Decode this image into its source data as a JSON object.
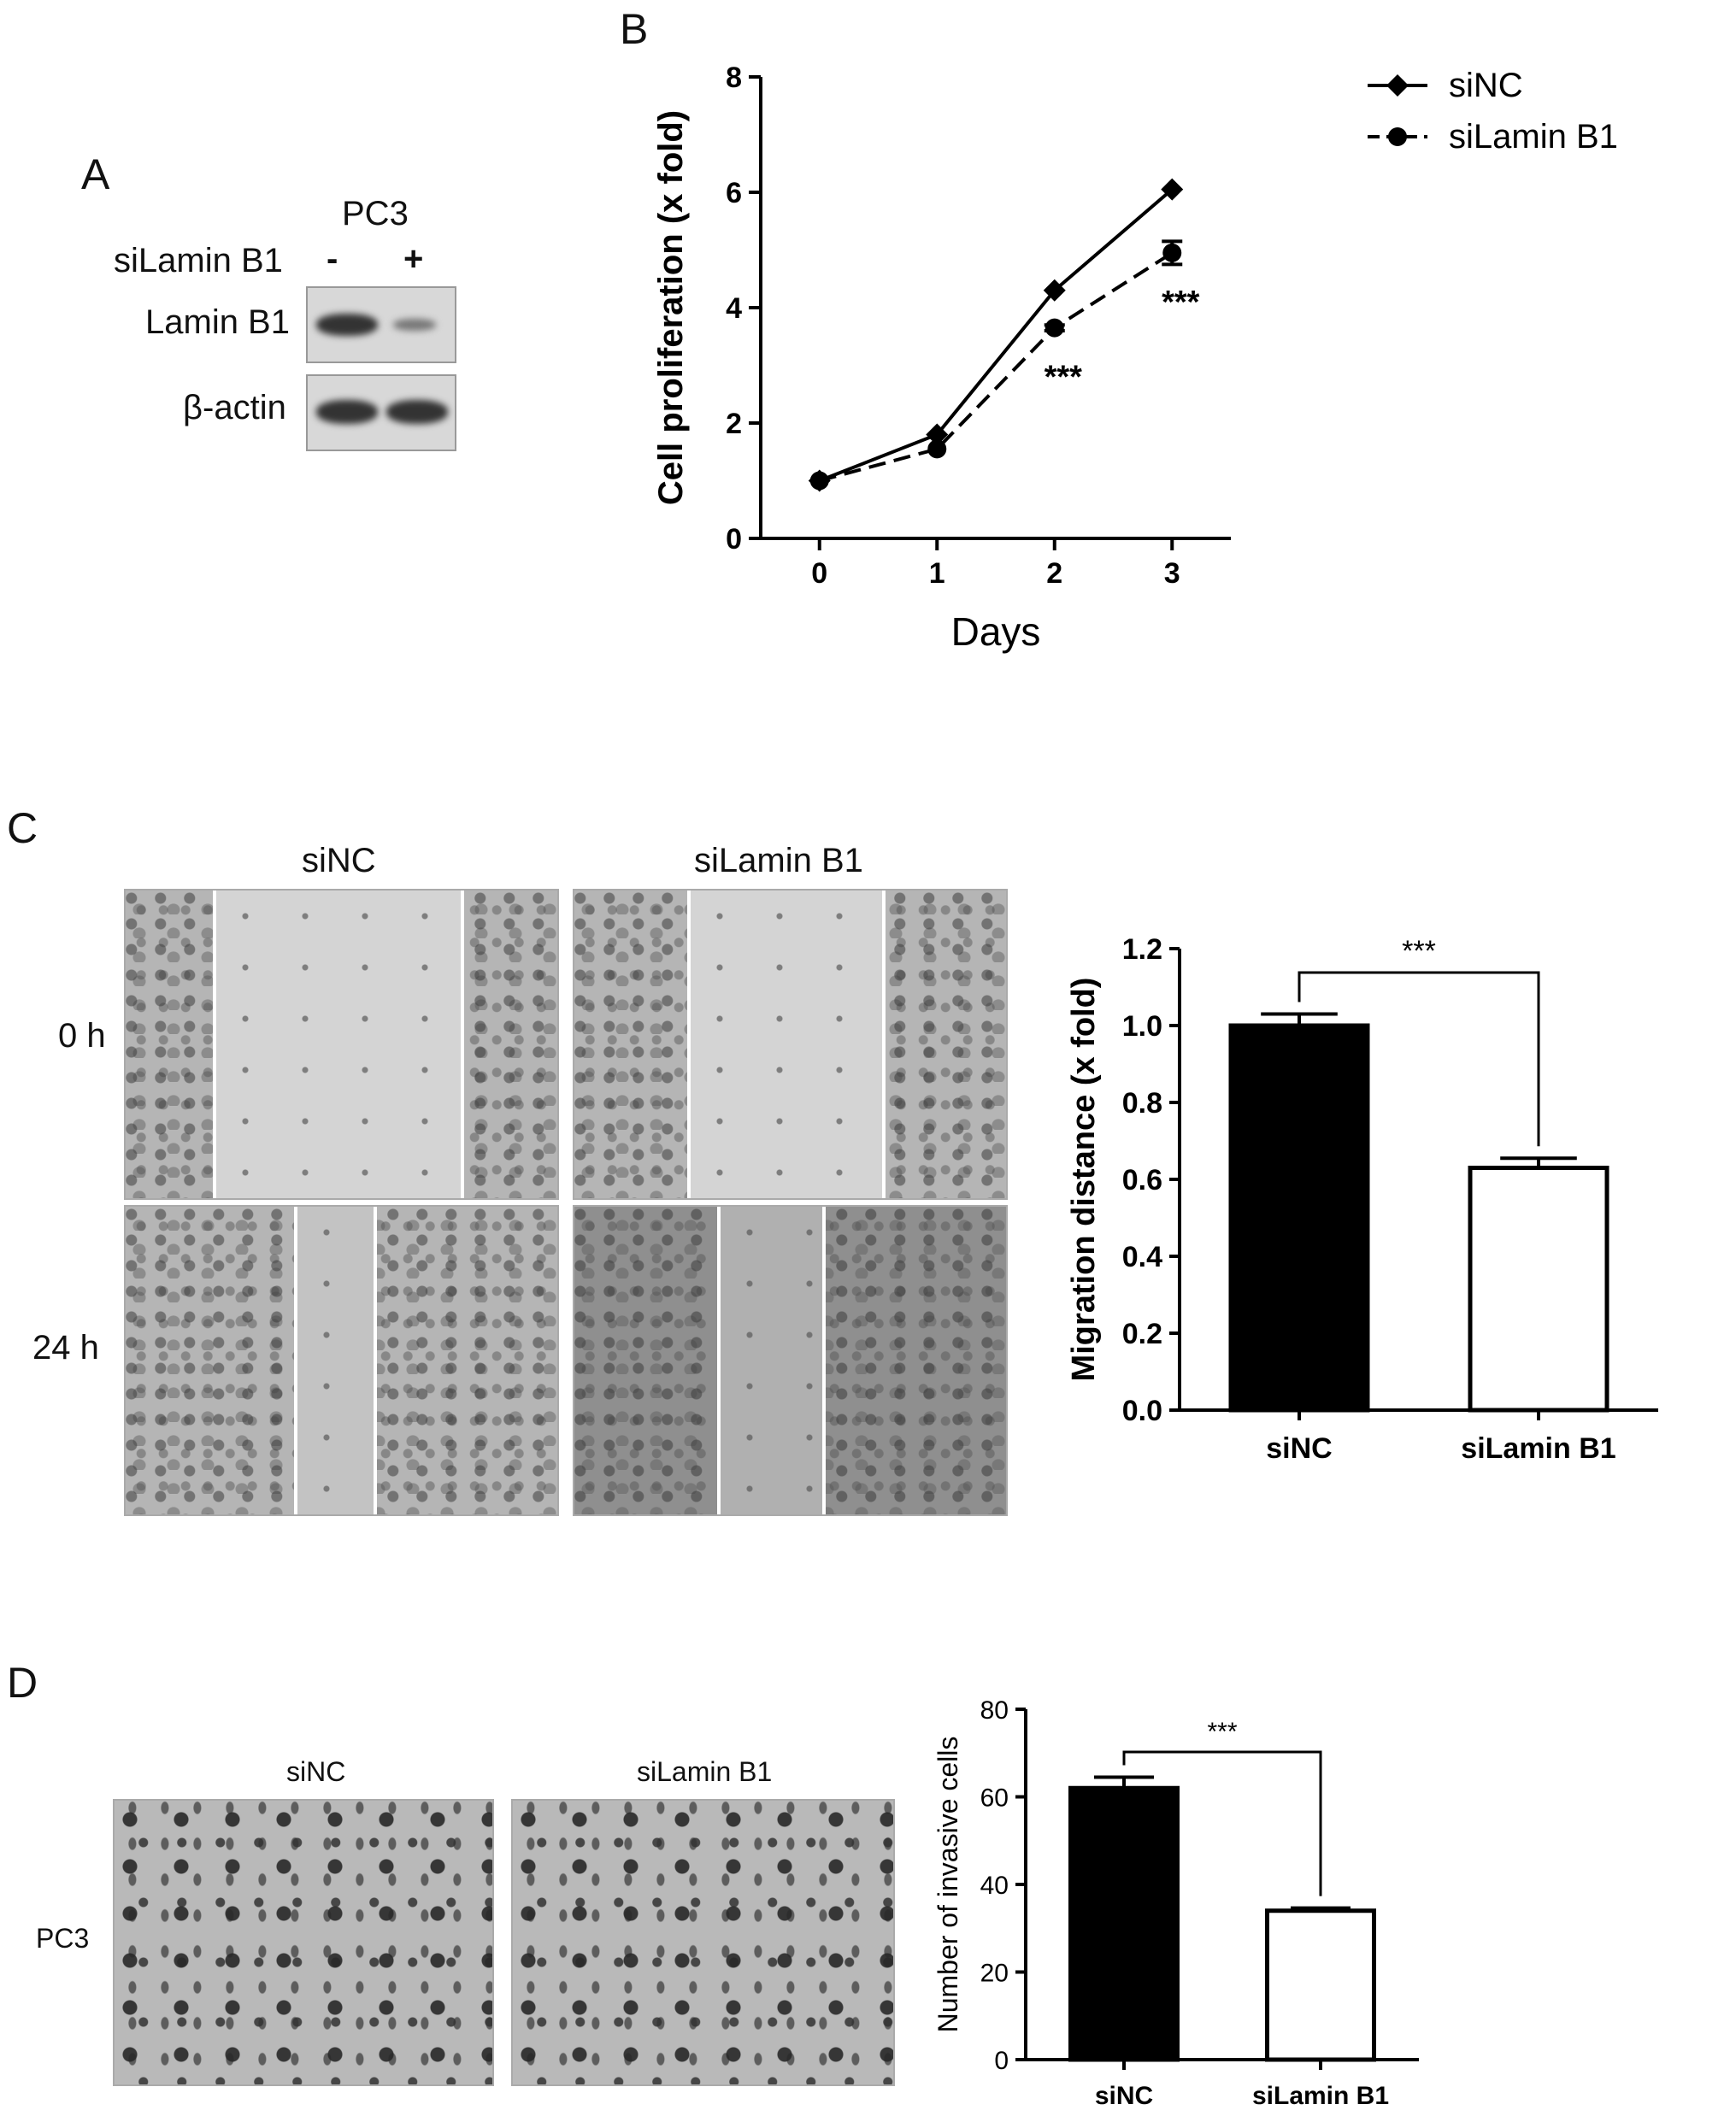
{
  "panels": {
    "A": {
      "letter": "A",
      "cell_line": "PC3",
      "treatment_label": "siLamin B1",
      "minus": "-",
      "plus": "+",
      "rows": [
        "Lamin B1",
        "β-actin"
      ]
    },
    "B": {
      "letter": "B"
    },
    "C": {
      "letter": "C",
      "col_labels": [
        "siNC",
        "siLamin B1"
      ],
      "row_labels": [
        "0 h",
        "24 h"
      ]
    },
    "D": {
      "letter": "D",
      "col_labels": [
        "siNC",
        "siLamin B1"
      ],
      "row_label": "PC3"
    }
  },
  "chart_data": [
    {
      "id": "B",
      "type": "line",
      "xlabel": "Days",
      "ylabel": "Cell proliferation (x fold)",
      "x": [
        0,
        1,
        2,
        3
      ],
      "xlim": [
        -0.5,
        3.5
      ],
      "ylim": [
        0,
        8
      ],
      "yticks": [
        0,
        2,
        4,
        6,
        8
      ],
      "series": [
        {
          "name": "siNC",
          "values": [
            1.0,
            1.8,
            4.3,
            6.05
          ],
          "errors": [
            0,
            0,
            0,
            0
          ],
          "style": "solid",
          "marker": "diamond"
        },
        {
          "name": "siLamin B1",
          "values": [
            1.0,
            1.55,
            3.65,
            4.95
          ],
          "errors": [
            0,
            0,
            0.05,
            0.2
          ],
          "style": "dashed",
          "marker": "circle"
        }
      ],
      "annotations": [
        {
          "x": 2,
          "y": 3.65,
          "text": "***"
        },
        {
          "x": 3,
          "y": 4.95,
          "text": "***"
        }
      ],
      "legend": "top-right"
    },
    {
      "id": "C",
      "type": "bar",
      "categories": [
        "siNC",
        "siLamin B1"
      ],
      "values": [
        1.0,
        0.63
      ],
      "errors": [
        0.03,
        0.025
      ],
      "fills": [
        "#000000",
        "#ffffff"
      ],
      "ylabel": "Migration distance (x fold)",
      "ylim": [
        0,
        1.2
      ],
      "yticks": [
        "0.0",
        "0.2",
        "0.4",
        "0.6",
        "0.8",
        "1.0",
        "1.2"
      ],
      "significance": "***"
    },
    {
      "id": "D",
      "type": "bar",
      "categories": [
        "siNC",
        "siLamin B1"
      ],
      "values": [
        62,
        34
      ],
      "errors": [
        2.5,
        0.6
      ],
      "fills": [
        "#000000",
        "#ffffff"
      ],
      "ylabel": "Number of invasive cells",
      "ylim": [
        0,
        80
      ],
      "yticks": [
        "0",
        "20",
        "40",
        "60",
        "80"
      ],
      "significance": "***"
    }
  ]
}
